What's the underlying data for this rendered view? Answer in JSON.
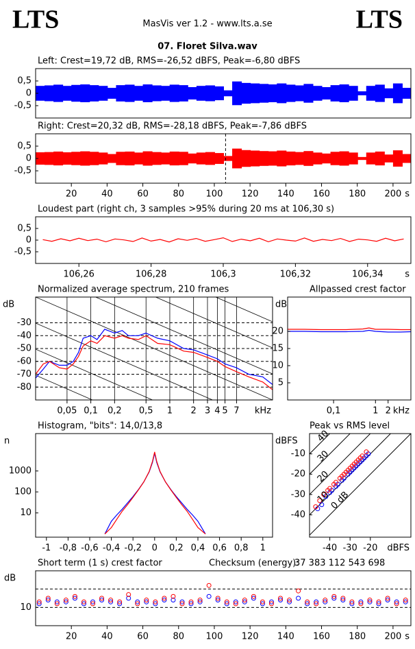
{
  "header": {
    "logo_left": "LTS",
    "app": "MasVis ver 1.2 - www.lts.a.se",
    "logo_right": "LTS",
    "file": "07. Floret Silva.wav"
  },
  "chart_data": [
    {
      "type": "waveform",
      "title": "Left: Crest=19,72 dB, RMS=-26,52 dBFS, Peak=-6,80 dBFS",
      "xlim": [
        0,
        210
      ],
      "ylim": [
        -1,
        1
      ],
      "yticks": [
        {
          "value": 0.5,
          "label": "0,5"
        },
        0,
        {
          "value": -0.5,
          "label": "-0,5"
        }
      ],
      "x": [
        0,
        5,
        10,
        15,
        20,
        25,
        30,
        35,
        40,
        45,
        50,
        55,
        60,
        65,
        70,
        75,
        80,
        85,
        90,
        95,
        100,
        105,
        110,
        115,
        120,
        125,
        130,
        135,
        140,
        145,
        150,
        155,
        160,
        165,
        170,
        175,
        180,
        185,
        190,
        195,
        200,
        205
      ],
      "series": [
        {
          "name": "Left",
          "color": "#0000ff",
          "values": [
            0.3,
            0.32,
            0.35,
            0.3,
            0.34,
            0.36,
            0.33,
            0.3,
            0.22,
            0.33,
            0.35,
            0.3,
            0.36,
            0.32,
            0.3,
            0.35,
            0.33,
            0.25,
            0.3,
            0.32,
            0.28,
            0.12,
            0.48,
            0.42,
            0.4,
            0.38,
            0.36,
            0.4,
            0.35,
            0.32,
            0.38,
            0.3,
            0.25,
            0.33,
            0.36,
            0.3,
            0.08,
            0.3,
            0.35,
            0.2,
            0.4,
            0.22
          ]
        }
      ]
    },
    {
      "type": "waveform",
      "title": "Right: Crest=20,32 dB, RMS=-28,18 dBFS, Peak=-7,86 dBFS",
      "xlim": [
        0,
        210
      ],
      "ylim": [
        -1,
        1
      ],
      "yticks": [
        {
          "value": 0.5,
          "label": "0,5"
        },
        0,
        {
          "value": -0.5,
          "label": "-0,5"
        }
      ],
      "xticks": [
        20,
        40,
        60,
        80,
        100,
        120,
        140,
        160,
        180,
        200
      ],
      "xlabel": "s",
      "marker_x": 106.3,
      "x": [
        0,
        5,
        10,
        15,
        20,
        25,
        30,
        35,
        40,
        45,
        50,
        55,
        60,
        65,
        70,
        75,
        80,
        85,
        90,
        95,
        100,
        105,
        110,
        115,
        120,
        125,
        130,
        135,
        140,
        145,
        150,
        155,
        160,
        165,
        170,
        175,
        180,
        185,
        190,
        195,
        200,
        205
      ],
      "series": [
        {
          "name": "Right",
          "color": "#ff0000",
          "values": [
            0.25,
            0.26,
            0.28,
            0.25,
            0.27,
            0.29,
            0.27,
            0.24,
            0.18,
            0.27,
            0.28,
            0.24,
            0.29,
            0.26,
            0.24,
            0.28,
            0.27,
            0.2,
            0.24,
            0.26,
            0.22,
            0.1,
            0.4,
            0.34,
            0.32,
            0.3,
            0.29,
            0.32,
            0.28,
            0.26,
            0.3,
            0.24,
            0.2,
            0.27,
            0.29,
            0.24,
            0.06,
            0.24,
            0.28,
            0.16,
            0.33,
            0.18
          ]
        }
      ]
    },
    {
      "type": "line",
      "title": "Loudest part (right ch, 3 samples >95% during 20 ms at 106,30 s)",
      "xlim": [
        106.248,
        106.352
      ],
      "ylim": [
        -1,
        1
      ],
      "yticks": [
        {
          "value": 0.5,
          "label": "0,5"
        },
        0,
        {
          "value": -0.5,
          "label": "-0,5"
        }
      ],
      "xticks": [
        {
          "value": 106.26,
          "label": "106,26"
        },
        {
          "value": 106.28,
          "label": "106,28"
        },
        {
          "value": 106.3,
          "label": "106,3"
        },
        {
          "value": 106.32,
          "label": "106,32"
        },
        {
          "value": 106.34,
          "label": "106,34"
        }
      ],
      "xlabel": "s",
      "x": [
        106.25,
        106.2525,
        106.255,
        106.2575,
        106.26,
        106.2625,
        106.265,
        106.2675,
        106.27,
        106.2725,
        106.275,
        106.2775,
        106.28,
        106.2825,
        106.285,
        106.2875,
        106.29,
        106.2925,
        106.295,
        106.2975,
        106.3,
        106.3025,
        106.305,
        106.3075,
        106.31,
        106.3125,
        106.315,
        106.3175,
        106.32,
        106.3225,
        106.325,
        106.3275,
        106.33,
        106.3325,
        106.335,
        106.3375,
        106.34,
        106.3425,
        106.345,
        106.3475,
        106.35
      ],
      "series": [
        {
          "name": "Right",
          "color": "#ff0000",
          "values": [
            0.02,
            -0.05,
            0.06,
            -0.03,
            0.08,
            -0.02,
            0.04,
            -0.07,
            0.05,
            0.01,
            -0.06,
            0.09,
            -0.04,
            0.03,
            -0.08,
            0.06,
            -0.01,
            0.07,
            -0.05,
            0.02,
            0.1,
            -0.06,
            0.04,
            -0.03,
            0.08,
            -0.07,
            0.05,
            0,
            -0.04,
            0.09,
            -0.05,
            0.03,
            -0.02,
            0.07,
            -0.06,
            0.04,
            0.01,
            -0.05,
            0.08,
            -0.03,
            0.05
          ]
        }
      ]
    },
    {
      "type": "line",
      "title": "Normalized average spectrum, 210 frames",
      "ylabel": "dB",
      "xlabel": "kHz",
      "xscale": "log",
      "grid": true,
      "diagonals": true,
      "xlim": [
        0.02,
        20
      ],
      "ylim": [
        -90,
        -10
      ],
      "yticks": [
        -30,
        -40,
        -50,
        -60,
        -70,
        -80
      ],
      "xticks": [
        {
          "value": 0.05,
          "label": "0,05"
        },
        {
          "value": 0.1,
          "label": "0,1"
        },
        {
          "value": 0.2,
          "label": "0,2"
        },
        {
          "value": 0.5,
          "label": "0,5"
        },
        1,
        2,
        3,
        4,
        5,
        7
      ],
      "x": [
        0.02,
        0.025,
        0.03,
        0.04,
        0.05,
        0.06,
        0.07,
        0.08,
        0.1,
        0.12,
        0.15,
        0.2,
        0.25,
        0.3,
        0.4,
        0.5,
        0.7,
        1,
        1.5,
        2,
        3,
        4,
        5,
        7,
        10,
        15,
        20
      ],
      "series": [
        {
          "name": "Left",
          "color": "#0000ff",
          "values": [
            -73,
            -66,
            -60,
            -63,
            -63,
            -60,
            -53,
            -42,
            -40,
            -43,
            -35,
            -38,
            -36,
            -40,
            -40,
            -38,
            -42,
            -44,
            -50,
            -51,
            -55,
            -58,
            -62,
            -65,
            -70,
            -72,
            -78
          ]
        },
        {
          "name": "Right",
          "color": "#ff0000",
          "values": [
            -70,
            -62,
            -60,
            -65,
            -66,
            -62,
            -56,
            -48,
            -44,
            -46,
            -40,
            -42,
            -40,
            -42,
            -43,
            -40,
            -46,
            -47,
            -52,
            -53,
            -57,
            -60,
            -64,
            -68,
            -72,
            -76,
            -82
          ]
        }
      ]
    },
    {
      "type": "line",
      "title": "Allpassed crest factor",
      "ylabel": "dB",
      "xlabel": "kHz",
      "xscale": "log",
      "xlim": [
        0.008,
        7
      ],
      "ylim": [
        0,
        30
      ],
      "yticks": [
        20,
        15,
        10,
        5
      ],
      "xticks": [
        {
          "value": 0.1,
          "label": "0,1"
        },
        1,
        2
      ],
      "x": [
        0.008,
        0.02,
        0.05,
        0.1,
        0.2,
        0.5,
        0.7,
        1,
        2,
        4,
        7
      ],
      "series": [
        {
          "name": "Left",
          "color": "#0000ff",
          "values": [
            20.0,
            20.0,
            19.9,
            19.9,
            19.9,
            20.0,
            20.3,
            20.0,
            19.8,
            19.8,
            19.9
          ]
        },
        {
          "name": "Right",
          "color": "#ff0000",
          "values": [
            20.6,
            20.6,
            20.5,
            20.5,
            20.5,
            20.7,
            21.0,
            20.6,
            20.6,
            20.5,
            20.5
          ]
        }
      ]
    },
    {
      "type": "line",
      "title": "Histogram, \"bits\": 14,0/13,8",
      "ylabel": "n",
      "yscale": "log",
      "xlim": [
        -1.1,
        1.09
      ],
      "ylim": [
        0.7,
        60000
      ],
      "yticks": [
        10,
        100,
        1000
      ],
      "xticks": [
        -1,
        {
          "value": -0.8,
          "label": "-0,8"
        },
        {
          "value": -0.6,
          "label": "-0,6"
        },
        {
          "value": -0.4,
          "label": "-0,4"
        },
        {
          "value": -0.2,
          "label": "-0,2"
        },
        0,
        {
          "value": 0.2,
          "label": "0,2"
        },
        {
          "value": 0.4,
          "label": "0,4"
        },
        {
          "value": 0.6,
          "label": "0,6"
        },
        {
          "value": 0.8,
          "label": "0,8"
        },
        1
      ],
      "x": [
        -0.46,
        -0.4,
        -0.35,
        -0.3,
        -0.25,
        -0.2,
        -0.15,
        -0.1,
        -0.05,
        -0.02,
        0,
        0.02,
        0.05,
        0.1,
        0.15,
        0.2,
        0.25,
        0.3,
        0.35,
        0.4,
        0.47
      ],
      "series": [
        {
          "name": "Left",
          "color": "#0000ff",
          "values": [
            1,
            4,
            8,
            15,
            30,
            60,
            130,
            300,
            900,
            2500,
            7000,
            2500,
            900,
            300,
            130,
            60,
            30,
            15,
            8,
            4,
            1
          ]
        },
        {
          "name": "Right",
          "color": "#ff0000",
          "values": [
            1,
            2,
            5,
            12,
            25,
            55,
            125,
            300,
            950,
            2800,
            8000,
            2800,
            950,
            300,
            125,
            55,
            25,
            12,
            5,
            2,
            1
          ]
        }
      ]
    },
    {
      "type": "scatter",
      "title": "Peak vs RMS level",
      "ylabel": "dBFS",
      "xlabel": "dBFS",
      "xlim": [
        -50,
        0
      ],
      "ylim": [
        -51,
        0
      ],
      "yticks": [
        -10,
        -20,
        -30,
        -40
      ],
      "xticks": [
        -40,
        -30,
        -20
      ],
      "crest_lines": [
        {
          "value": 0,
          "label": "0 dB"
        },
        {
          "value": 10,
          "label": "10"
        },
        {
          "value": 20,
          "label": "20"
        },
        {
          "value": 30,
          "label": "30"
        },
        {
          "value": 40,
          "label": "40"
        }
      ],
      "series": [
        {
          "name": "Left",
          "color": "#0000ff",
          "x": [
            -46,
            -44,
            -42,
            -40,
            -39,
            -37,
            -36,
            -34,
            -33,
            -31,
            -30,
            -29,
            -28,
            -27,
            -26,
            -25,
            -24,
            -23,
            -22,
            -21
          ],
          "values": [
            -37,
            -35,
            -31,
            -29,
            -28,
            -26,
            -25,
            -23,
            -22,
            -20,
            -19,
            -18,
            -17,
            -16,
            -15,
            -14,
            -13,
            -12,
            -11,
            -10
          ]
        },
        {
          "name": "Right",
          "color": "#ff0000",
          "x": [
            -47,
            -45,
            -43,
            -41,
            -40,
            -38,
            -37,
            -35,
            -34,
            -33,
            -32,
            -31,
            -30,
            -29,
            -28,
            -27,
            -26,
            -25,
            -24,
            -22
          ],
          "values": [
            -36,
            -33,
            -30,
            -28,
            -27,
            -25,
            -24,
            -22,
            -21,
            -20,
            -19,
            -18,
            -17,
            -16,
            -15,
            -14,
            -13,
            -12,
            -11,
            -9
          ]
        }
      ]
    },
    {
      "type": "markers",
      "title": "Short term (1 s) crest factor",
      "checksum_label": "Checksum (energy):",
      "checksum": "37 383 112 543 698",
      "ylabel": "dB",
      "xlabel": "s",
      "xlim": [
        0,
        210
      ],
      "ylim": [
        0,
        30
      ],
      "yticks": [
        10
      ],
      "grid_y": [
        10,
        20
      ],
      "xticks": [
        20,
        40,
        60,
        80,
        100,
        120,
        140,
        160,
        180,
        200
      ],
      "x": [
        2,
        7,
        12,
        17,
        22,
        27,
        32,
        37,
        42,
        47,
        52,
        57,
        62,
        67,
        72,
        77,
        82,
        87,
        92,
        97,
        102,
        107,
        112,
        117,
        122,
        127,
        132,
        137,
        142,
        147,
        152,
        157,
        162,
        167,
        172,
        177,
        182,
        187,
        192,
        197,
        202,
        207
      ],
      "series": [
        {
          "name": "Left",
          "color": "#0000ff",
          "values": [
            12,
            14,
            13,
            13,
            15,
            12,
            13,
            14,
            13,
            12,
            15,
            13,
            13,
            12,
            14,
            14,
            13,
            12,
            13,
            16,
            14,
            12,
            13,
            13,
            15,
            12,
            13,
            14,
            13,
            15,
            12,
            13,
            13,
            15,
            14,
            12,
            13,
            13,
            12,
            14,
            13,
            13
          ]
        },
        {
          "name": "Right",
          "color": "#ff0000",
          "values": [
            13,
            15,
            12,
            14,
            16,
            13,
            12,
            15,
            14,
            13,
            17,
            12,
            14,
            13,
            15,
            16,
            12,
            13,
            14,
            22,
            15,
            13,
            12,
            14,
            16,
            13,
            12,
            15,
            14,
            19,
            13,
            12,
            14,
            16,
            15,
            13,
            12,
            14,
            13,
            15,
            12,
            14
          ]
        }
      ]
    }
  ]
}
